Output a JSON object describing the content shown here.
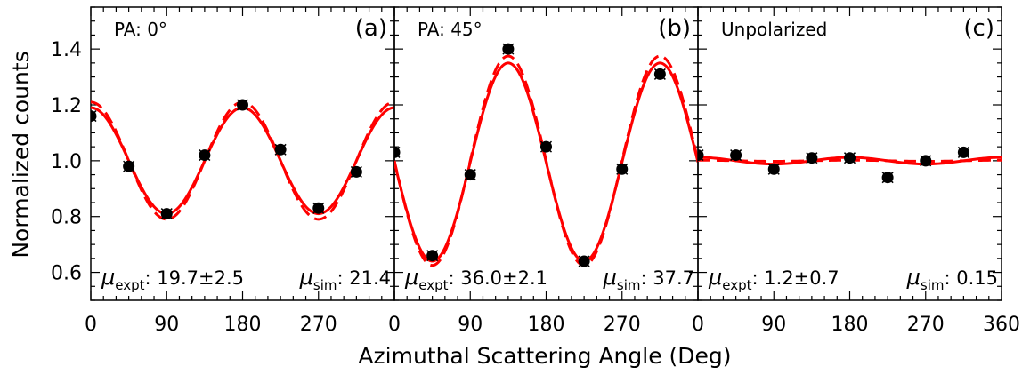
{
  "y_axis_label": "Normalized counts",
  "x_axis_label": "Azimuthal Scattering Angle (Deg)",
  "colors": {
    "fit": "#ff0000",
    "points": "#000000"
  },
  "chart_data": [
    {
      "type": "scatter",
      "panel_label": "(a)",
      "condition": "PA: 0°",
      "mu_expt": {
        "symbol": "μ",
        "subscript": "expt",
        "value": ": 19.7±2.5"
      },
      "mu_sim": {
        "symbol": "μ",
        "subscript": "sim",
        "value": ": 21.4"
      },
      "xlim": [
        0,
        360
      ],
      "ylim": [
        0.5,
        1.55
      ],
      "xticks": [
        0,
        90,
        180,
        270
      ],
      "yticks": [
        0.6,
        0.8,
        1.0,
        1.2,
        1.4
      ],
      "x": [
        0,
        45,
        90,
        135,
        180,
        225,
        270,
        315
      ],
      "y": [
        1.16,
        0.98,
        0.81,
        1.02,
        1.2,
        1.04,
        0.83,
        0.96
      ],
      "fit_solid": {
        "mean": 1.0,
        "amplitude": 0.19,
        "phase_deg": 0
      },
      "fit_dashed": {
        "mean": 1.0,
        "amplitude": 0.21,
        "phase_deg": 0
      }
    },
    {
      "type": "scatter",
      "panel_label": "(b)",
      "condition": "PA: 45°",
      "mu_expt": {
        "symbol": "μ",
        "subscript": "expt",
        "value": ": 36.0±2.1"
      },
      "mu_sim": {
        "symbol": "μ",
        "subscript": "sim",
        "value": ": 37.7"
      },
      "xlim": [
        0,
        360
      ],
      "ylim": [
        0.5,
        1.55
      ],
      "xticks": [
        0,
        90,
        180,
        270
      ],
      "yticks": [
        0.6,
        0.8,
        1.0,
        1.2,
        1.4
      ],
      "x": [
        0,
        45,
        90,
        135,
        180,
        225,
        270,
        315
      ],
      "y": [
        1.03,
        0.66,
        0.95,
        1.4,
        1.05,
        0.64,
        0.97,
        1.31
      ],
      "fit_solid": {
        "mean": 0.995,
        "amplitude": 0.355,
        "phase_deg": 135
      },
      "fit_dashed": {
        "mean": 1.0,
        "amplitude": 0.375,
        "phase_deg": 135
      }
    },
    {
      "type": "scatter",
      "panel_label": "(c)",
      "condition": "Unpolarized",
      "mu_expt": {
        "symbol": "μ",
        "subscript": "expt",
        "value": ": 1.2±0.7"
      },
      "mu_sim": {
        "symbol": "μ",
        "subscript": "sim",
        "value": ": 0.15"
      },
      "xlim": [
        0,
        360
      ],
      "ylim": [
        0.5,
        1.55
      ],
      "xticks": [
        0,
        90,
        180,
        270,
        360
      ],
      "yticks": [
        0.6,
        0.8,
        1.0,
        1.2,
        1.4
      ],
      "x": [
        0,
        45,
        90,
        135,
        180,
        225,
        270,
        315
      ],
      "y": [
        1.02,
        1.02,
        0.97,
        1.01,
        1.01,
        0.94,
        1.0,
        1.03
      ],
      "fit_solid": {
        "mean": 1.0,
        "amplitude": 0.012,
        "phase_deg": 0
      },
      "fit_dashed": {
        "mean": 1.0,
        "amplitude": 0.002,
        "phase_deg": 0
      }
    }
  ]
}
